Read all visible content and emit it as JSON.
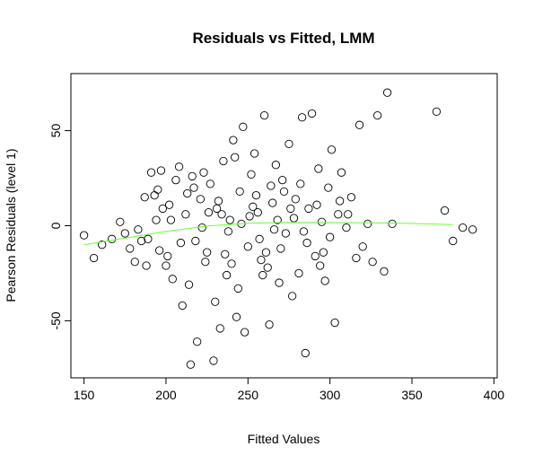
{
  "chart_data": {
    "type": "scatter",
    "title": "Residuals vs Fitted, LMM",
    "xlabel": "Fitted Values",
    "ylabel": "Pearson Residuals (level 1)",
    "xlim": [
      142,
      402
    ],
    "ylim": [
      -80,
      80
    ],
    "x_ticks": [
      150,
      200,
      250,
      300,
      350,
      400
    ],
    "y_ticks": [
      -50,
      0,
      50
    ],
    "grid": false,
    "legend": "none",
    "colors": {
      "points": "#000000",
      "smooth": "#66ff33"
    },
    "smooth_line": {
      "x": [
        150,
        175,
        200,
        225,
        250,
        275,
        300,
        325,
        350,
        375,
        400
      ],
      "y": [
        -10,
        -6.5,
        -3,
        -0.2,
        1.3,
        1.8,
        1.7,
        1.5,
        1.2,
        0.6,
        -0.5
      ]
    },
    "points": [
      [
        150,
        -5
      ],
      [
        156,
        -17
      ],
      [
        161,
        -10
      ],
      [
        167,
        -7
      ],
      [
        172,
        2
      ],
      [
        175,
        -4
      ],
      [
        178,
        -12
      ],
      [
        181,
        -19
      ],
      [
        183,
        -2
      ],
      [
        185,
        -8
      ],
      [
        187,
        15
      ],
      [
        189,
        -7
      ],
      [
        191,
        28
      ],
      [
        193,
        16
      ],
      [
        195,
        19
      ],
      [
        197,
        29
      ],
      [
        198,
        9
      ],
      [
        200,
        -21
      ],
      [
        202,
        11
      ],
      [
        204,
        -28
      ],
      [
        206,
        24
      ],
      [
        208,
        31
      ],
      [
        210,
        -42
      ],
      [
        212,
        6
      ],
      [
        214,
        -31
      ],
      [
        215,
        -73
      ],
      [
        217,
        20
      ],
      [
        219,
        -61
      ],
      [
        221,
        14
      ],
      [
        223,
        28
      ],
      [
        225,
        -14
      ],
      [
        227,
        22
      ],
      [
        229,
        -71
      ],
      [
        231,
        9
      ],
      [
        233,
        -54
      ],
      [
        235,
        34
      ],
      [
        237,
        -26
      ],
      [
        239,
        3
      ],
      [
        241,
        45
      ],
      [
        243,
        -48
      ],
      [
        245,
        18
      ],
      [
        247,
        52
      ],
      [
        248,
        -56
      ],
      [
        250,
        -11
      ],
      [
        252,
        27
      ],
      [
        254,
        38
      ],
      [
        256,
        7
      ],
      [
        258,
        -18
      ],
      [
        260,
        58
      ],
      [
        262,
        -22
      ],
      [
        263,
        -52
      ],
      [
        265,
        12
      ],
      [
        267,
        32
      ],
      [
        269,
        -30
      ],
      [
        271,
        24
      ],
      [
        273,
        -4
      ],
      [
        275,
        43
      ],
      [
        277,
        -37
      ],
      [
        279,
        14
      ],
      [
        281,
        -25
      ],
      [
        283,
        57
      ],
      [
        285,
        -67
      ],
      [
        287,
        9
      ],
      [
        289,
        59
      ],
      [
        291,
        -16
      ],
      [
        293,
        30
      ],
      [
        295,
        2
      ],
      [
        297,
        -29
      ],
      [
        299,
        20
      ],
      [
        301,
        40
      ],
      [
        303,
        -51
      ],
      [
        305,
        6
      ],
      [
        307,
        28
      ],
      [
        310,
        -1
      ],
      [
        313,
        15
      ],
      [
        316,
        -17
      ],
      [
        318,
        53
      ],
      [
        320,
        -11
      ],
      [
        323,
        1
      ],
      [
        326,
        -19
      ],
      [
        329,
        58
      ],
      [
        333,
        -24
      ],
      [
        335,
        70
      ],
      [
        338,
        1
      ],
      [
        365,
        60
      ],
      [
        370,
        8
      ],
      [
        375,
        -8
      ],
      [
        381,
        -1
      ],
      [
        387,
        -2
      ],
      [
        196,
        -13
      ],
      [
        203,
        3
      ],
      [
        218,
        -8
      ],
      [
        224,
        -19
      ],
      [
        232,
        13
      ],
      [
        238,
        -3
      ],
      [
        244,
        -33
      ],
      [
        251,
        5
      ],
      [
        257,
        -7
      ],
      [
        264,
        21
      ],
      [
        270,
        -12
      ],
      [
        278,
        4
      ],
      [
        286,
        -9
      ],
      [
        292,
        11
      ],
      [
        300,
        -6
      ],
      [
        226,
        7
      ],
      [
        236,
        -15
      ],
      [
        246,
        1
      ],
      [
        255,
        16
      ],
      [
        266,
        -2
      ],
      [
        276,
        9
      ],
      [
        188,
        -21
      ],
      [
        209,
        -9
      ],
      [
        216,
        26
      ],
      [
        230,
        -40
      ],
      [
        242,
        36
      ],
      [
        259,
        -26
      ],
      [
        268,
        3
      ],
      [
        282,
        22
      ],
      [
        296,
        -14
      ],
      [
        311,
        6
      ],
      [
        194,
        3
      ],
      [
        201,
        -16
      ],
      [
        213,
        17
      ],
      [
        222,
        -1
      ],
      [
        234,
        6
      ],
      [
        240,
        -20
      ],
      [
        253,
        10
      ],
      [
        261,
        -14
      ],
      [
        272,
        18
      ],
      [
        284,
        -3
      ],
      [
        294,
        -21
      ],
      [
        306,
        13
      ]
    ]
  }
}
